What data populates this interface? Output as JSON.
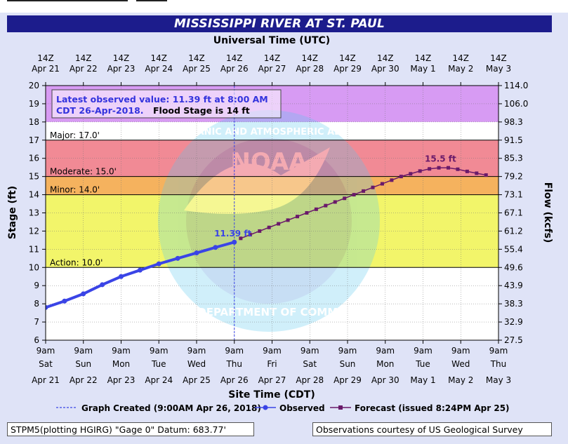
{
  "header": {
    "title": "MISSISSIPPI RIVER AT ST. PAUL",
    "top_axis_title": "Universal Time (UTC)",
    "bottom_axis_title": "Site Time (CDT)"
  },
  "callout": {
    "line1": "Latest observed value: 11.39 ft at 8:00 AM",
    "line2a": "CDT 26-Apr-2018.",
    "line2b": "Flood Stage is 14 ft"
  },
  "legend": {
    "created": "Graph Created (9:00AM Apr 26, 2018)",
    "observed": "Observed",
    "forecast": "Forecast (issued 8:24PM Apr 25)"
  },
  "footer": {
    "left": "STPM5(plotting HGIRG) \"Gage 0\" Datum: 683.77'",
    "right": "Observations courtesy of US Geological Survey"
  },
  "watermark": {
    "ring_top": "NATIONAL OCEANIC AND ATMOSPHERIC ADMINISTRATION",
    "ring_bottom": "U.S. DEPARTMENT OF COMMERCE",
    "center": "NOAA"
  },
  "colors": {
    "title_bg": "#1c1c8c",
    "major": "#d79bf3",
    "major_band": "#f18a95",
    "moderate": "#f5b25e",
    "minor": "#f2f56a",
    "normal": "#ffffff",
    "observed": "#3a44e6",
    "forecast": "#6a1a6a",
    "callout_text": "#3333dd"
  },
  "chart_data": {
    "type": "line",
    "ylabel_left": "Stage (ft)",
    "ylabel_right": "Flow (kcfs)",
    "ylim": [
      6,
      20
    ],
    "y_ticks": [
      "6",
      "7",
      "8",
      "9",
      "10",
      "11",
      "12",
      "13",
      "14",
      "15",
      "16",
      "17",
      "18",
      "19",
      "20"
    ],
    "flow_ticks": [
      "27.5",
      "32.9",
      "38.3",
      "43.9",
      "49.6",
      "55.4",
      "61.2",
      "67.1",
      "73.1",
      "79.2",
      "85.3",
      "91.5",
      "98.3",
      "106.0",
      "114.0"
    ],
    "x_range_days": [
      0,
      12
    ],
    "utc_top_labels": [
      [
        "14Z",
        "Apr 21"
      ],
      [
        "14Z",
        "Apr 22"
      ],
      [
        "14Z",
        "Apr 23"
      ],
      [
        "14Z",
        "Apr 24"
      ],
      [
        "14Z",
        "Apr 25"
      ],
      [
        "14Z",
        "Apr 26"
      ],
      [
        "14Z",
        "Apr 27"
      ],
      [
        "14Z",
        "Apr 28"
      ],
      [
        "14Z",
        "Apr 29"
      ],
      [
        "14Z",
        "Apr 30"
      ],
      [
        "14Z",
        "May 1"
      ],
      [
        "14Z",
        "May 2"
      ],
      [
        "14Z",
        "May 3"
      ]
    ],
    "local_bottom_labels": [
      [
        "9am",
        "Sat",
        "Apr 21"
      ],
      [
        "9am",
        "Sun",
        "Apr 22"
      ],
      [
        "9am",
        "Mon",
        "Apr 23"
      ],
      [
        "9am",
        "Tue",
        "Apr 24"
      ],
      [
        "9am",
        "Wed",
        "Apr 25"
      ],
      [
        "9am",
        "Thu",
        "Apr 26"
      ],
      [
        "9am",
        "Fri",
        "Apr 27"
      ],
      [
        "9am",
        "Sat",
        "Apr 28"
      ],
      [
        "9am",
        "Sun",
        "Apr 29"
      ],
      [
        "9am",
        "Mon",
        "Apr 30"
      ],
      [
        "9am",
        "Tue",
        "May 1"
      ],
      [
        "9am",
        "Wed",
        "May 2"
      ],
      [
        "9am",
        "Thu",
        "May 3"
      ]
    ],
    "flood_categories": [
      {
        "name": "Major",
        "label": "Major: 17.0'",
        "from": 17,
        "to": 20
      },
      {
        "name": "Moderate",
        "label": "Moderate: 15.0'",
        "from": 15,
        "to": 17
      },
      {
        "name": "Minor",
        "label": "Minor: 14.0'",
        "from": 14,
        "to": 15
      },
      {
        "name": "Action",
        "label": "Action: 10.0'",
        "from": 10,
        "to": 14
      }
    ],
    "graph_created_x": 5,
    "observed": {
      "name": "Observed",
      "x": [
        0,
        0.5,
        1,
        1.5,
        2,
        2.5,
        3,
        3.5,
        4,
        4.5,
        5
      ],
      "y": [
        7.8,
        8.15,
        8.55,
        9.05,
        9.5,
        9.85,
        10.2,
        10.5,
        10.8,
        11.1,
        11.39
      ]
    },
    "forecast": {
      "name": "Forecast",
      "x": [
        5.17,
        5.42,
        5.67,
        5.92,
        6.17,
        6.42,
        6.67,
        6.92,
        7.17,
        7.42,
        7.67,
        7.92,
        8.17,
        8.42,
        8.67,
        8.92,
        9.17,
        9.42,
        9.67,
        9.92,
        10.17,
        10.42,
        10.67,
        10.92,
        11.17,
        11.42,
        11.67
      ],
      "y": [
        11.6,
        11.8,
        12.0,
        12.2,
        12.4,
        12.6,
        12.8,
        13.0,
        13.2,
        13.4,
        13.6,
        13.8,
        14.0,
        14.2,
        14.4,
        14.6,
        14.8,
        15.0,
        15.15,
        15.3,
        15.42,
        15.48,
        15.48,
        15.4,
        15.28,
        15.18,
        15.08
      ]
    },
    "data_labels": [
      {
        "text": "11.39 ft",
        "x": 5,
        "y": 11.39,
        "series": "observed"
      },
      {
        "text": "15.5 ft",
        "x": 10.5,
        "y": 15.5,
        "series": "forecast"
      }
    ]
  }
}
